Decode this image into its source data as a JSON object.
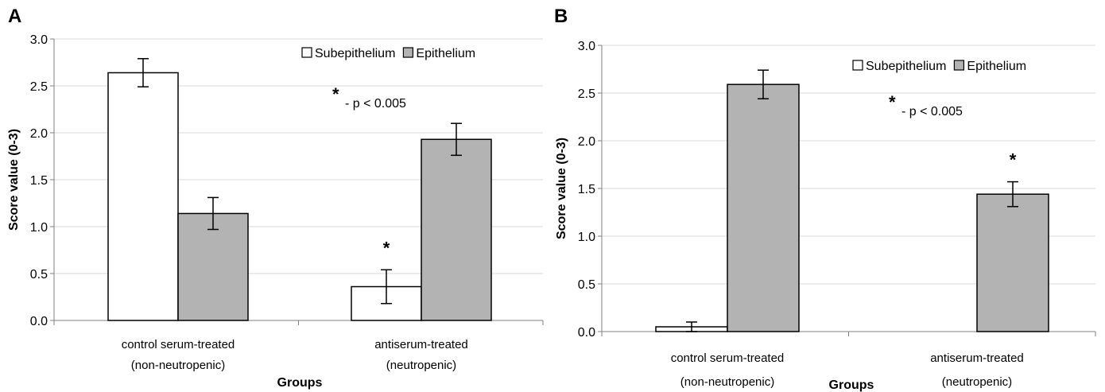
{
  "colors": {
    "subepithelium": "#ffffff",
    "epithelium": "#b3b3b3",
    "grid": "#d9d9d9",
    "axis": "#808080"
  },
  "chart_data": [
    {
      "panel": "A",
      "type": "bar",
      "categories": [
        {
          "line1": "control serum-treated",
          "line2": "(non-neutropenic)"
        },
        {
          "line1": "antiserum-treated",
          "line2": "(neutropenic)"
        }
      ],
      "series": [
        {
          "name": "Subepithelium",
          "values": [
            2.64,
            0.36
          ],
          "errors": [
            0.15,
            0.18
          ]
        },
        {
          "name": "Epithelium",
          "values": [
            1.14,
            1.93
          ],
          "errors": [
            0.17,
            0.17
          ]
        }
      ],
      "significance": [
        {
          "category": 1,
          "series": 0,
          "label": "*"
        }
      ],
      "annotation": {
        "star": "*",
        "text": "- p < 0.005"
      },
      "xlabel": "Groups",
      "ylabel": "Score value (0-3)",
      "ylim": [
        0,
        3
      ],
      "yticks": [
        "0.0",
        "0.5",
        "1.0",
        "1.5",
        "2.0",
        "2.5",
        "3.0"
      ],
      "grid": true,
      "legend": "top-right"
    },
    {
      "panel": "B",
      "type": "bar",
      "categories": [
        {
          "line1": "control serum-treated",
          "line2": "(non-neutropenic)"
        },
        {
          "line1": "antiserum-treated",
          "line2": "(neutropenic)"
        }
      ],
      "series": [
        {
          "name": "Subepithelium",
          "values": [
            0.05,
            0.0
          ],
          "errors": [
            0.05,
            0.0
          ]
        },
        {
          "name": "Epithelium",
          "values": [
            2.59,
            1.44
          ],
          "errors": [
            0.15,
            0.13
          ]
        }
      ],
      "significance": [
        {
          "category": 1,
          "series": 1,
          "label": "*"
        }
      ],
      "annotation": {
        "star": "*",
        "text": "- p < 0.005"
      },
      "xlabel": "Groups",
      "ylabel": "Score value (0-3)",
      "ylim": [
        0,
        3
      ],
      "yticks": [
        "0.0",
        "0.5",
        "1.0",
        "1.5",
        "2.0",
        "2.5",
        "3.0"
      ],
      "grid": true,
      "legend": "top-right"
    }
  ]
}
